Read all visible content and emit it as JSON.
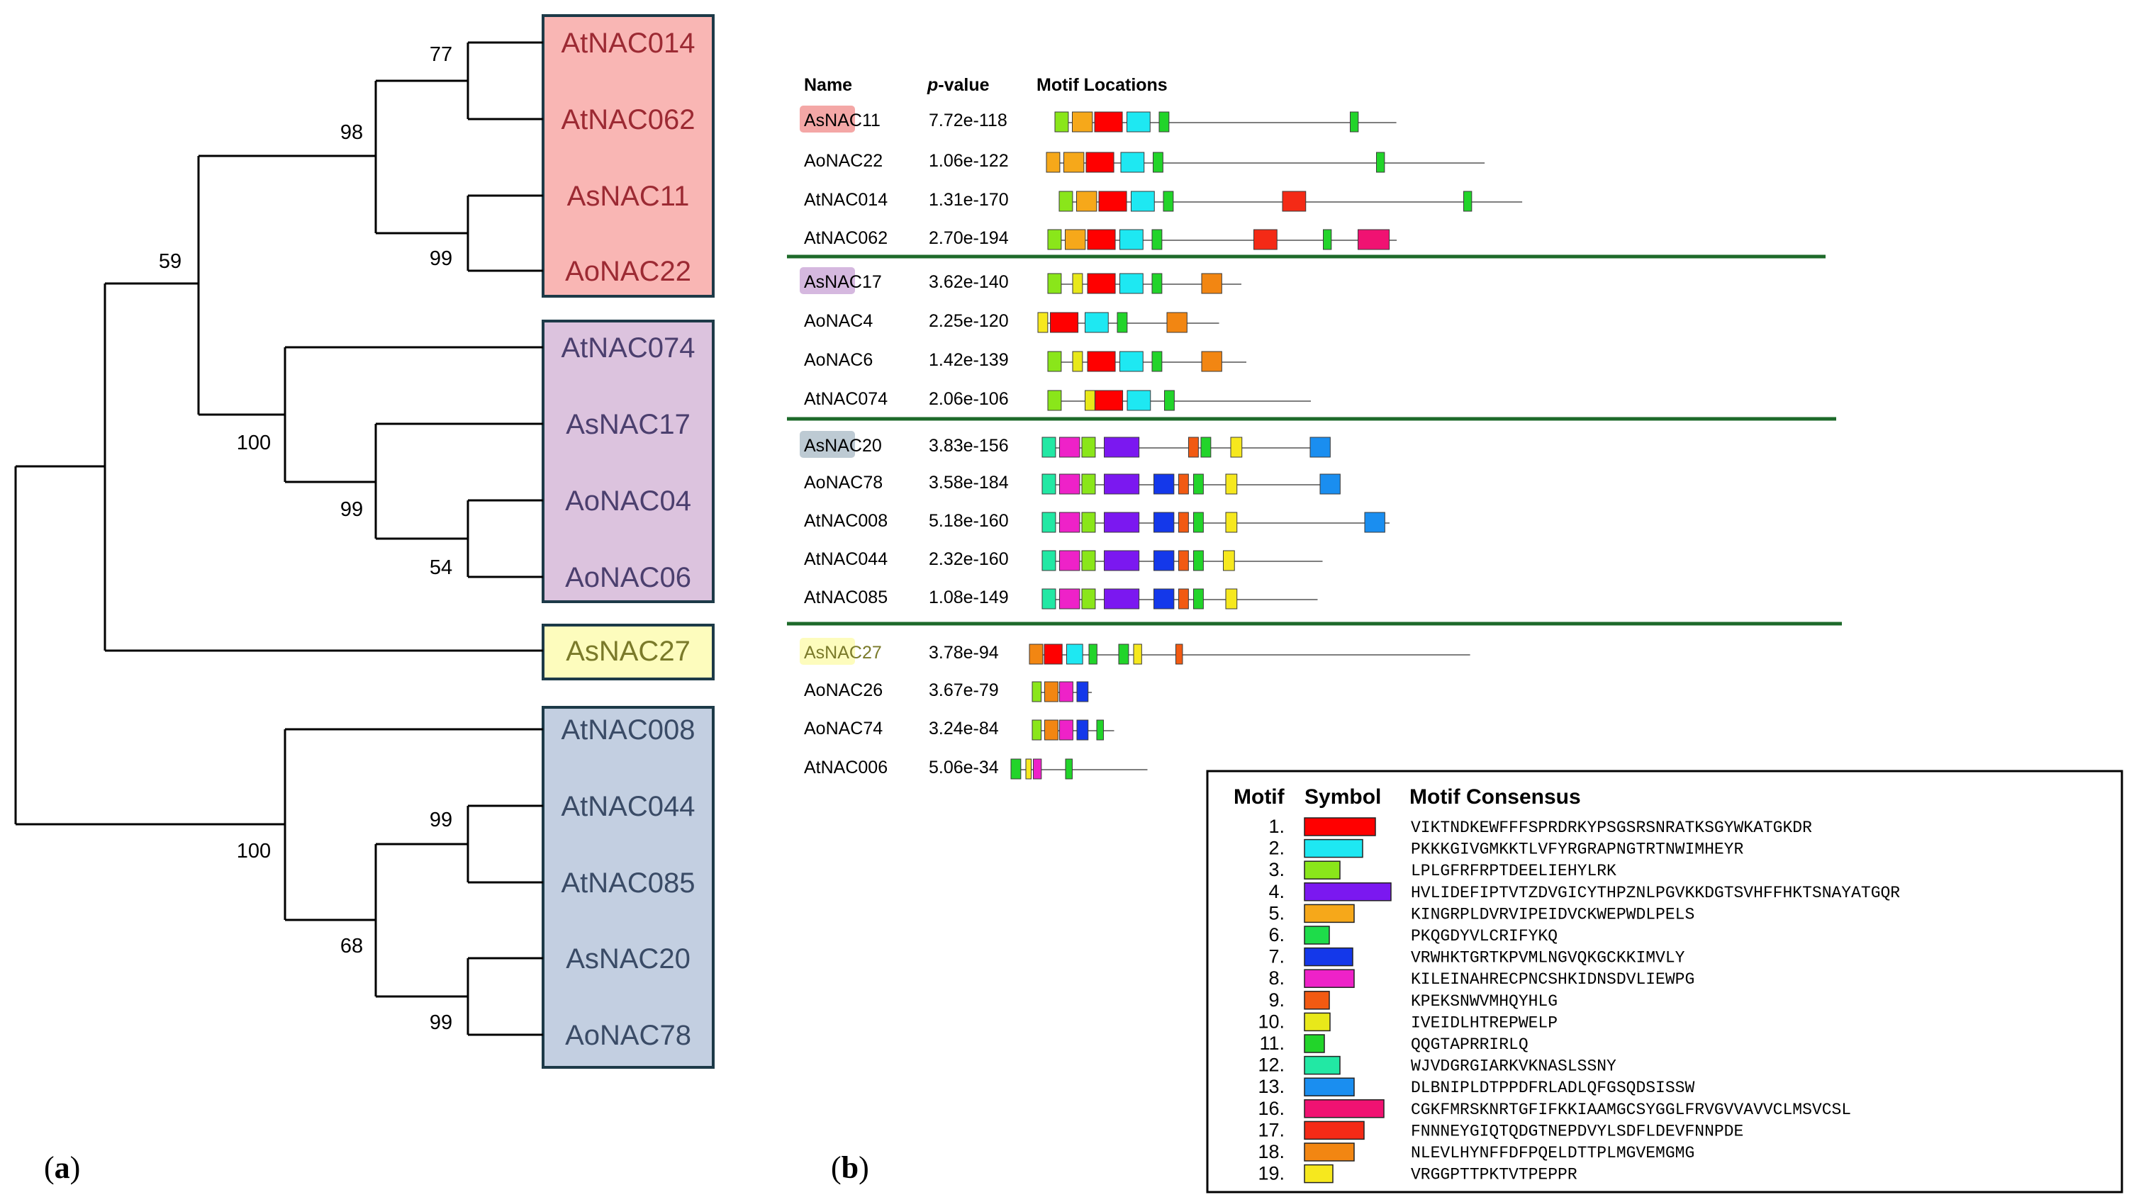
{
  "panel_labels": {
    "a": "(a)",
    "b": "(b)"
  },
  "colors": {
    "group_pink": "#f9b6b4",
    "group_purple": "#dcc3de",
    "group_yellow": "#fdfcbd",
    "group_blue": "#c3cfe1",
    "box_border": "#1d3a48",
    "leaf_text_pink": "#9c2a33",
    "leaf_text_purple": "#4b3f6e",
    "leaf_text_yellow": "#7a7a2a",
    "leaf_text_blue": "#3a4b66",
    "separator": "#1d6a2a"
  },
  "tree": {
    "leaves": [
      {
        "name": "AtNAC014",
        "group": "pink"
      },
      {
        "name": "AtNAC062",
        "group": "pink"
      },
      {
        "name": "AsNAC11",
        "group": "pink"
      },
      {
        "name": "AoNAC22",
        "group": "pink"
      },
      {
        "name": "AtNAC074",
        "group": "purple"
      },
      {
        "name": "AsNAC17",
        "group": "purple"
      },
      {
        "name": "AoNAC04",
        "group": "purple"
      },
      {
        "name": "AoNAC06",
        "group": "purple"
      },
      {
        "name": "AsNAC27",
        "group": "yellow"
      },
      {
        "name": "AtNAC008",
        "group": "blue"
      },
      {
        "name": "AtNAC044",
        "group": "blue"
      },
      {
        "name": "AtNAC085",
        "group": "blue"
      },
      {
        "name": "AsNAC20",
        "group": "blue"
      },
      {
        "name": "AoNAC78",
        "group": "blue"
      }
    ],
    "bootstrap": [
      "77",
      "98",
      "99",
      "59",
      "100",
      "99",
      "54",
      "99",
      "100",
      "68",
      "99"
    ]
  },
  "motif_table": {
    "headers": {
      "name": "Name",
      "pvalue_p": "p",
      "pvalue_rest": "-value",
      "locations": "Motif Locations"
    },
    "rows": [
      {
        "name": "AsNAC11",
        "highlight": "#f4a7a6",
        "pvalue": "7.72e-118",
        "length": 688,
        "motifs": [
          [
            3,
            30
          ],
          [
            5,
            45
          ],
          [
            1,
            62
          ],
          [
            2,
            52
          ],
          [
            11,
            22
          ],
          [
            11,
            18
          ]
        ],
        "starts": [
          0,
          35,
          80,
          145,
          210,
          595
        ]
      },
      {
        "name": "AoNAC22",
        "highlight": "",
        "pvalue": "1.06e-122",
        "length": 883,
        "motifs": [
          [
            5,
            30
          ],
          [
            5,
            45
          ],
          [
            1,
            62
          ],
          [
            2,
            52
          ],
          [
            11,
            22
          ],
          [
            11,
            18
          ]
        ],
        "starts": [
          0,
          35,
          80,
          150,
          215,
          665
        ]
      },
      {
        "name": "AtNAC014",
        "highlight": "",
        "pvalue": "1.31e-170",
        "length": 933,
        "motifs": [
          [
            3,
            30
          ],
          [
            5,
            45
          ],
          [
            1,
            62
          ],
          [
            2,
            52
          ],
          [
            11,
            22
          ],
          [
            17,
            52
          ],
          [
            11,
            18
          ]
        ],
        "starts": [
          0,
          35,
          80,
          145,
          210,
          450,
          815
        ]
      },
      {
        "name": "AtNAC062",
        "highlight": "",
        "pvalue": "2.70e-194",
        "length": 703,
        "motifs": [
          [
            3,
            30
          ],
          [
            5,
            45
          ],
          [
            1,
            62
          ],
          [
            2,
            52
          ],
          [
            11,
            22
          ],
          [
            17,
            52
          ],
          [
            11,
            18
          ],
          [
            16,
            70
          ]
        ],
        "starts": [
          0,
          35,
          80,
          145,
          210,
          415,
          555,
          625
        ]
      },
      {
        "name": "AsNAC17",
        "highlight": "#d5b8df",
        "pvalue": "3.62e-140",
        "length": 390,
        "motifs": [
          [
            3,
            30
          ],
          [
            10,
            22
          ],
          [
            1,
            62
          ],
          [
            2,
            52
          ],
          [
            11,
            22
          ],
          [
            18,
            45
          ]
        ],
        "starts": [
          0,
          50,
          80,
          145,
          210,
          310
        ]
      },
      {
        "name": "AoNAC4",
        "highlight": "",
        "pvalue": "2.25e-120",
        "length": 365,
        "motifs": [
          [
            19,
            22
          ],
          [
            1,
            62
          ],
          [
            2,
            52
          ],
          [
            11,
            22
          ],
          [
            18,
            45
          ]
        ],
        "starts": [
          0,
          25,
          95,
          160,
          260
        ]
      },
      {
        "name": "AoNAC6",
        "highlight": "",
        "pvalue": "1.42e-139",
        "length": 400,
        "motifs": [
          [
            3,
            30
          ],
          [
            10,
            22
          ],
          [
            1,
            62
          ],
          [
            2,
            52
          ],
          [
            11,
            22
          ],
          [
            18,
            45
          ]
        ],
        "starts": [
          0,
          50,
          80,
          145,
          210,
          310
        ]
      },
      {
        "name": "AtNAC074",
        "highlight": "",
        "pvalue": "2.06e-106",
        "length": 530,
        "motifs": [
          [
            3,
            30
          ],
          [
            10,
            22
          ],
          [
            1,
            62
          ],
          [
            2,
            52
          ],
          [
            11,
            22
          ]
        ],
        "starts": [
          0,
          75,
          95,
          160,
          235
        ]
      },
      {
        "name": "AsNAC20",
        "highlight": "#bdcad3",
        "pvalue": "3.83e-156",
        "length": 580,
        "motifs": [
          [
            12,
            30
          ],
          [
            8,
            45
          ],
          [
            3,
            30
          ],
          [
            4,
            78
          ],
          [
            9,
            22
          ],
          [
            11,
            22
          ],
          [
            19,
            25
          ],
          [
            13,
            45
          ]
        ],
        "starts": [
          0,
          35,
          80,
          125,
          295,
          320,
          380,
          540
        ]
      },
      {
        "name": "AoNAC78",
        "highlight": "",
        "pvalue": "3.58e-184",
        "length": 600,
        "motifs": [
          [
            12,
            30
          ],
          [
            8,
            45
          ],
          [
            3,
            30
          ],
          [
            4,
            78
          ],
          [
            7,
            45
          ],
          [
            9,
            22
          ],
          [
            11,
            22
          ],
          [
            19,
            25
          ],
          [
            13,
            45
          ]
        ],
        "starts": [
          0,
          35,
          80,
          125,
          225,
          275,
          305,
          370,
          560
        ]
      },
      {
        "name": "AtNAC008",
        "highlight": "",
        "pvalue": "5.18e-160",
        "length": 700,
        "motifs": [
          [
            12,
            30
          ],
          [
            8,
            45
          ],
          [
            3,
            30
          ],
          [
            4,
            78
          ],
          [
            7,
            45
          ],
          [
            9,
            22
          ],
          [
            11,
            22
          ],
          [
            19,
            25
          ],
          [
            13,
            45
          ]
        ],
        "starts": [
          0,
          35,
          80,
          125,
          225,
          275,
          305,
          370,
          650
        ]
      },
      {
        "name": "AtNAC044",
        "highlight": "",
        "pvalue": "2.32e-160",
        "length": 565,
        "motifs": [
          [
            12,
            30
          ],
          [
            8,
            45
          ],
          [
            3,
            30
          ],
          [
            4,
            78
          ],
          [
            7,
            45
          ],
          [
            9,
            22
          ],
          [
            11,
            22
          ],
          [
            19,
            25
          ]
        ],
        "starts": [
          0,
          35,
          80,
          125,
          225,
          275,
          305,
          365
        ]
      },
      {
        "name": "AtNAC085",
        "highlight": "",
        "pvalue": "1.08e-149",
        "length": 555,
        "motifs": [
          [
            12,
            30
          ],
          [
            8,
            45
          ],
          [
            3,
            30
          ],
          [
            4,
            78
          ],
          [
            7,
            45
          ],
          [
            9,
            22
          ],
          [
            11,
            22
          ],
          [
            19,
            25
          ]
        ],
        "starts": [
          0,
          35,
          80,
          125,
          225,
          275,
          305,
          370
        ]
      },
      {
        "name": "AsNAC27",
        "highlight": "#fdfcbd",
        "pvalue": "3.78e-94",
        "length": 888,
        "motifs": [
          [
            18,
            30
          ],
          [
            1,
            40
          ],
          [
            2,
            36
          ],
          [
            11,
            18
          ],
          [
            11,
            22
          ],
          [
            19,
            18
          ],
          [
            9,
            15
          ]
        ],
        "starts": [
          0,
          30,
          75,
          120,
          180,
          210,
          295
        ]
      },
      {
        "name": "AoNAC26",
        "highlight": "",
        "pvalue": "3.67e-79",
        "length": 120,
        "motifs": [
          [
            3,
            20
          ],
          [
            18,
            30
          ],
          [
            8,
            30
          ],
          [
            7,
            25
          ]
        ],
        "starts": [
          0,
          25,
          55,
          90
        ]
      },
      {
        "name": "AoNAC74",
        "highlight": "",
        "pvalue": "3.24e-84",
        "length": 165,
        "motifs": [
          [
            3,
            20
          ],
          [
            18,
            30
          ],
          [
            8,
            30
          ],
          [
            7,
            25
          ],
          [
            11,
            15
          ]
        ],
        "starts": [
          0,
          25,
          55,
          90,
          130
        ]
      },
      {
        "name": "AtNAC006",
        "highlight": "",
        "pvalue": "5.06e-34",
        "length": 275,
        "motifs": [
          [
            11,
            22
          ],
          [
            19,
            12
          ],
          [
            8,
            18
          ],
          [
            11,
            15
          ]
        ],
        "starts": [
          0,
          30,
          45,
          110
        ]
      }
    ]
  },
  "legend": {
    "headers": {
      "motif": "Motif",
      "symbol": "Symbol",
      "consensus": "Motif Consensus"
    },
    "motifs": [
      {
        "number": "1.",
        "id": 1,
        "color": "#ff0000",
        "len": 100,
        "consensus": "VIKTNDKEWFFFSPRDRKYPSGSRSNRATKSGYWKATGKDR"
      },
      {
        "number": "2.",
        "id": 2,
        "color": "#1ee8f2",
        "len": 82,
        "consensus": "PKKKGIVGMKKTLVFYRGRAPNGTRTNWIMHEYR"
      },
      {
        "number": "3.",
        "id": 3,
        "color": "#8ae61a",
        "len": 50,
        "consensus": "LPLGFRFRPTDEELIEHYLRK"
      },
      {
        "number": "4.",
        "id": 4,
        "color": "#7b18f0",
        "len": 122,
        "consensus": "HVLIDEFIPTVTZDVGICYTHPZNLPGVKKDGTSVHFFHKTSNAYATGQR"
      },
      {
        "number": "5.",
        "id": 5,
        "color": "#f6a81a",
        "len": 70,
        "consensus": "KINGRPLDVRVIPEIDVCKWEPWDLPELS"
      },
      {
        "number": "6.",
        "id": 6,
        "color": "#1edc4a",
        "len": 35,
        "consensus": "PKQGDYVLCRIFYKQ"
      },
      {
        "number": "7.",
        "id": 7,
        "color": "#1438ea",
        "len": 68,
        "consensus": "VRWHKTGRTKPVMLNGVQKGCKKIMVLY"
      },
      {
        "number": "8.",
        "id": 8,
        "color": "#ee22c8",
        "len": 70,
        "consensus": "KILEINAHRECPNCSHKIDNSDVLIEWPG"
      },
      {
        "number": "9.",
        "id": 9,
        "color": "#f25a12",
        "len": 35,
        "consensus": "KPEKSNWVMHQYHLG"
      },
      {
        "number": "10.",
        "id": 10,
        "color": "#e8e81a",
        "len": 36,
        "consensus": "IVEIDLHTREPWELP"
      },
      {
        "number": "11.",
        "id": 11,
        "color": "#22d42a",
        "len": 28,
        "consensus": "QQGTAPRRIRLQ"
      },
      {
        "number": "12.",
        "id": 12,
        "color": "#22e8a4",
        "len": 50,
        "consensus": "WJVDGRGIARKVKNASLSSNY"
      },
      {
        "number": "13.",
        "id": 13,
        "color": "#1a8ef0",
        "len": 70,
        "consensus": "DLBNIPLDTPPDFRLADLQFGSQDSISSW"
      },
      {
        "number": "16.",
        "id": 16,
        "color": "#f01272",
        "len": 112,
        "consensus": "CGKFMRSKNRTGFIFKKIAAMGCSYGGLFRVGVVAVVCLMSVCSL"
      },
      {
        "number": "17.",
        "id": 17,
        "color": "#f42a16",
        "len": 84,
        "consensus": "FNNNEYGIQTQDGTNEPDVYLSDFLDEVFNNPDE"
      },
      {
        "number": "18.",
        "id": 18,
        "color": "#f28612",
        "len": 70,
        "consensus": "NLEVLHYNFFDFPQELDTTPLMGVEMGMG"
      },
      {
        "number": "19.",
        "id": 19,
        "color": "#f6e81e",
        "len": 40,
        "consensus": "VRGGPTTPKTVTPEPPR"
      }
    ]
  }
}
